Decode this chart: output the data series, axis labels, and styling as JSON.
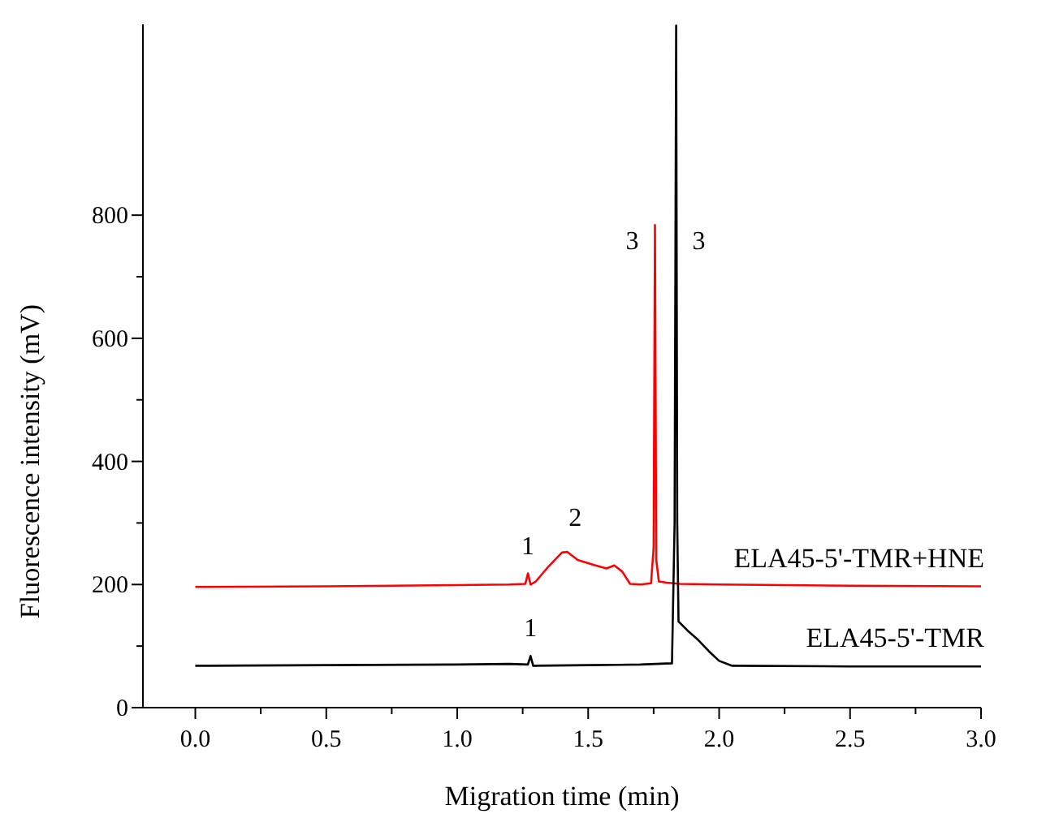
{
  "chart_data": {
    "type": "line",
    "xlabel": "Migration time (min)",
    "ylabel": "Fluorescence intensity (mV)",
    "xlim": [
      -0.2,
      3.0
    ],
    "ylim": [
      0,
      1110
    ],
    "xticks": [
      {
        "value": 0,
        "label": "0.0"
      },
      {
        "value": 0.25,
        "label": null
      },
      {
        "value": 0.5,
        "label": "0.5"
      },
      {
        "value": 0.75,
        "label": null
      },
      {
        "value": 1,
        "label": "1.0"
      },
      {
        "value": 1.25,
        "label": null
      },
      {
        "value": 1.5,
        "label": "1.5"
      },
      {
        "value": 1.75,
        "label": null
      },
      {
        "value": 2,
        "label": "2.0"
      },
      {
        "value": 2.25,
        "label": null
      },
      {
        "value": 2.5,
        "label": "2.5"
      },
      {
        "value": 2.75,
        "label": null
      },
      {
        "value": 3,
        "label": "3.0"
      }
    ],
    "yticks": [
      0,
      {
        "value": 100,
        "label": null
      },
      200,
      {
        "value": 300,
        "label": null
      },
      400,
      {
        "value": 500,
        "label": null
      },
      600,
      {
        "value": 700,
        "label": null
      },
      800
    ],
    "grid": false,
    "legend": false,
    "marker": "none",
    "line_style": "solid",
    "series": [
      {
        "name": "ELA45-5'-TMR+HNE",
        "color": "#ff0000",
        "x": [
          0,
          0.5,
          1.0,
          1.2,
          1.26,
          1.27,
          1.28,
          1.3,
          1.35,
          1.4,
          1.42,
          1.46,
          1.52,
          1.57,
          1.6,
          1.63,
          1.66,
          1.7,
          1.74,
          1.75,
          1.755,
          1.76,
          1.77,
          1.8,
          1.85,
          2.0,
          2.5,
          3.0
        ],
        "values": [
          196,
          197,
          199,
          200,
          201,
          218,
          200,
          205,
          230,
          252,
          253,
          240,
          232,
          226,
          231,
          221,
          201,
          200,
          202,
          260,
          784,
          240,
          205,
          203,
          201,
          200,
          198,
          197
        ]
      },
      {
        "name": "ELA45-5'-TMR",
        "color": "#000000",
        "x": [
          0,
          0.5,
          1.0,
          1.2,
          1.27,
          1.28,
          1.29,
          1.5,
          1.7,
          1.82,
          1.83,
          1.836,
          1.84,
          1.845,
          1.88,
          1.92,
          1.96,
          2.0,
          2.05,
          2.5,
          3.0
        ],
        "values": [
          68,
          69,
          70,
          71,
          70,
          84,
          68,
          69,
          70,
          72,
          300,
          1108,
          300,
          140,
          125,
          110,
          92,
          76,
          68,
          67,
          67
        ]
      }
    ],
    "annotations": [
      {
        "text": "1",
        "x": 1.27,
        "y": 218
      },
      {
        "text": "2",
        "x": 1.45,
        "y": 253
      },
      {
        "text": "3",
        "x": 1.755,
        "y": 784
      },
      {
        "text": "3",
        "x": 1.836,
        "y": 784
      },
      {
        "text": "1",
        "x": 1.28,
        "y": 84
      }
    ]
  }
}
